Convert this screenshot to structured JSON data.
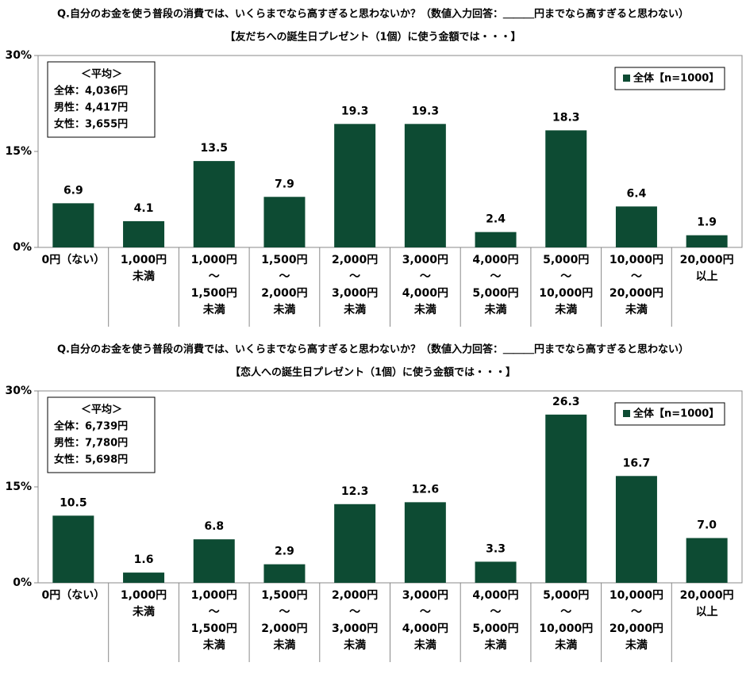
{
  "chart_data": [
    {
      "type": "bar",
      "title": "Q.自分のお金を使う普段の消費では、いくらまでなら高すぎると思わないか？（数値入力回答：＿＿＿円までなら高すぎると思わない）",
      "subtitle": "【友だちへの誕生日プレゼント（1個）に使う金額では・・・】",
      "annotation": [
        "＜平均＞",
        "全体：4,036円",
        "男性：4,417円",
        "女性：3,655円"
      ],
      "categories": [
        "0円（ない）",
        "1,000円\n未満",
        "1,000円\n～\n1,500円\n未満",
        "1,500円\n～\n2,000円\n未満",
        "2,000円\n～\n3,000円\n未満",
        "3,000円\n～\n4,000円\n未満",
        "4,000円\n～\n5,000円\n未満",
        "5,000円\n～\n10,000円\n未満",
        "10,000円\n～\n20,000円\n未満",
        "20,000円\n以上"
      ],
      "series": [
        {
          "name": "全体【n=1000】",
          "color": "#0d4b33",
          "values": [
            6.9,
            4.1,
            13.5,
            7.9,
            19.3,
            19.3,
            2.4,
            18.3,
            6.4,
            1.9
          ],
          "value_labels": [
            "6.9",
            "4.1",
            "13.5",
            "7.9",
            "19.3",
            "19.3",
            "2.4",
            "18.3",
            "6.4",
            "1.9"
          ]
        }
      ],
      "ylim": [
        0,
        30
      ],
      "yticks": [
        {
          "value": 0,
          "label": "0%"
        },
        {
          "value": 15,
          "label": "15%"
        },
        {
          "value": 30,
          "label": "30%"
        }
      ],
      "legend": "top-right"
    },
    {
      "type": "bar",
      "title": "Q.自分のお金を使う普段の消費では、いくらまでなら高すぎると思わないか？（数値入力回答：＿＿＿円までなら高すぎると思わない）",
      "subtitle": "【恋人への誕生日プレゼント（1個）に使う金額では・・・】",
      "annotation": [
        "＜平均＞",
        "全体：6,739円",
        "男性：7,780円",
        "女性：5,698円"
      ],
      "categories": [
        "0円（ない）",
        "1,000円\n未満",
        "1,000円\n～\n1,500円\n未満",
        "1,500円\n～\n2,000円\n未満",
        "2,000円\n～\n3,000円\n未満",
        "3,000円\n～\n4,000円\n未満",
        "4,000円\n～\n5,000円\n未満",
        "5,000円\n～\n10,000円\n未満",
        "10,000円\n～\n20,000円\n未満",
        "20,000円\n以上"
      ],
      "series": [
        {
          "name": "全体【n=1000】",
          "color": "#0d4b33",
          "values": [
            10.5,
            1.6,
            6.8,
            2.9,
            12.3,
            12.6,
            3.3,
            26.3,
            16.7,
            7.0
          ],
          "value_labels": [
            "10.5",
            "1.6",
            "6.8",
            "2.9",
            "12.3",
            "12.6",
            "3.3",
            "26.3",
            "16.7",
            "7.0"
          ]
        }
      ],
      "ylim": [
        0,
        30
      ],
      "yticks": [
        {
          "value": 0,
          "label": "0%"
        },
        {
          "value": 15,
          "label": "15%"
        },
        {
          "value": 30,
          "label": "30%"
        }
      ],
      "legend": "top-right"
    }
  ]
}
